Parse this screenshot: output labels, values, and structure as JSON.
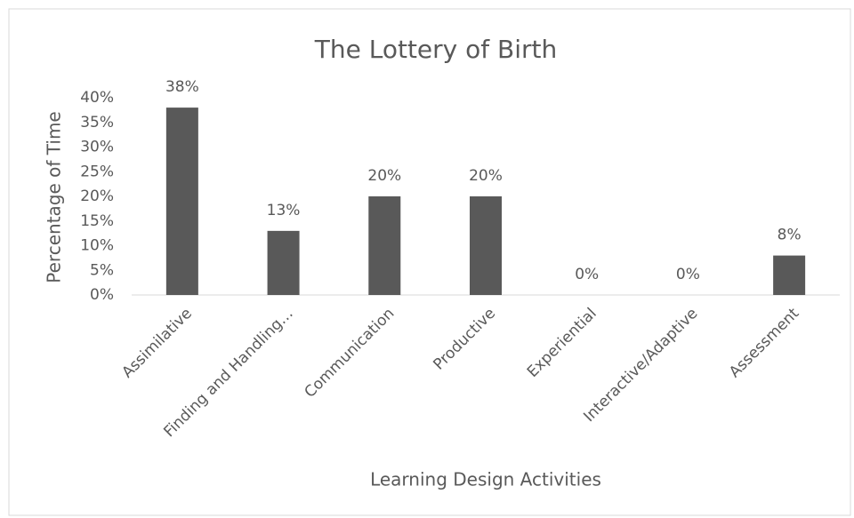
{
  "chart_data": {
    "type": "bar",
    "title": "The Lottery of Birth",
    "x_label": "Learning Design Activities",
    "y_label": "Percentage of Time",
    "categories": [
      "Assimilative",
      "Finding and Handling…",
      "Communication",
      "Productive",
      "Experiential",
      "Interactive/Adaptive",
      "Assessment"
    ],
    "values": [
      38,
      13,
      20,
      20,
      0,
      0,
      8
    ],
    "value_labels": [
      "38%",
      "13%",
      "20%",
      "20%",
      "0%",
      "0%",
      "8%"
    ],
    "color": "#595959",
    "ylim": [
      0,
      40
    ],
    "yticks": [
      {
        "value": 0,
        "label": "0%"
      },
      {
        "value": 5,
        "label": "5%"
      },
      {
        "value": 10,
        "label": "10%"
      },
      {
        "value": 15,
        "label": "15%"
      },
      {
        "value": 20,
        "label": "20%"
      },
      {
        "value": 25,
        "label": "25%"
      },
      {
        "value": 30,
        "label": "30%"
      },
      {
        "value": 35,
        "label": "35%"
      },
      {
        "value": 40,
        "label": "40%"
      }
    ],
    "grid": false
  }
}
